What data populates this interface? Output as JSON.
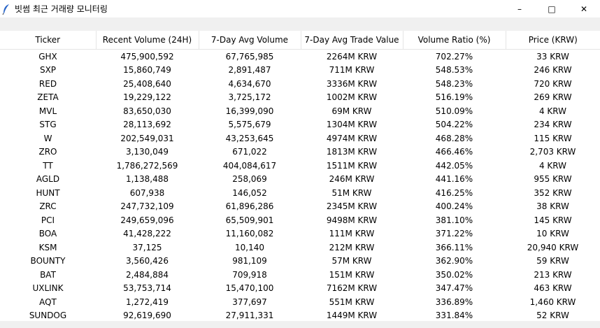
{
  "window": {
    "title": "빗썸 최근 거래량 모니터링",
    "minimize_glyph": "–",
    "maximize_glyph": "□",
    "close_glyph": "✕"
  },
  "table": {
    "columns": [
      "Ticker",
      "Recent Volume (24H)",
      "7-Day Avg Volume",
      "7-Day Avg Trade Value",
      "Volume Ratio (%)",
      "Price (KRW)"
    ],
    "rows": [
      [
        "GHX",
        "475,900,592",
        "67,765,985",
        "2264M KRW",
        "702.27%",
        "33 KRW"
      ],
      [
        "SXP",
        "15,860,749",
        "2,891,487",
        "711M KRW",
        "548.53%",
        "246 KRW"
      ],
      [
        "RED",
        "25,408,640",
        "4,634,670",
        "3336M KRW",
        "548.23%",
        "720 KRW"
      ],
      [
        "ZETA",
        "19,229,122",
        "3,725,172",
        "1002M KRW",
        "516.19%",
        "269 KRW"
      ],
      [
        "MVL",
        "83,650,030",
        "16,399,090",
        "69M KRW",
        "510.09%",
        "4 KRW"
      ],
      [
        "STG",
        "28,113,692",
        "5,575,679",
        "1304M KRW",
        "504.22%",
        "234 KRW"
      ],
      [
        "W",
        "202,549,031",
        "43,253,645",
        "4974M KRW",
        "468.28%",
        "115 KRW"
      ],
      [
        "ZRO",
        "3,130,049",
        "671,022",
        "1813M KRW",
        "466.46%",
        "2,703 KRW"
      ],
      [
        "TT",
        "1,786,272,569",
        "404,084,617",
        "1511M KRW",
        "442.05%",
        "4 KRW"
      ],
      [
        "AGLD",
        "1,138,488",
        "258,069",
        "246M KRW",
        "441.16%",
        "955 KRW"
      ],
      [
        "HUNT",
        "607,938",
        "146,052",
        "51M KRW",
        "416.25%",
        "352 KRW"
      ],
      [
        "ZRC",
        "247,732,109",
        "61,896,286",
        "2345M KRW",
        "400.24%",
        "38 KRW"
      ],
      [
        "PCI",
        "249,659,096",
        "65,509,901",
        "9498M KRW",
        "381.10%",
        "145 KRW"
      ],
      [
        "BOA",
        "41,428,222",
        "11,160,082",
        "111M KRW",
        "371.22%",
        "10 KRW"
      ],
      [
        "KSM",
        "37,125",
        "10,140",
        "212M KRW",
        "366.11%",
        "20,940 KRW"
      ],
      [
        "BOUNTY",
        "3,560,426",
        "981,109",
        "57M KRW",
        "362.90%",
        "59 KRW"
      ],
      [
        "BAT",
        "2,484,884",
        "709,918",
        "151M KRW",
        "350.02%",
        "213 KRW"
      ],
      [
        "UXLINK",
        "53,753,714",
        "15,470,100",
        "7162M KRW",
        "347.47%",
        "463 KRW"
      ],
      [
        "AQT",
        "1,272,419",
        "377,697",
        "551M KRW",
        "336.89%",
        "1,460 KRW"
      ],
      [
        "SUNDOG",
        "92,619,690",
        "27,911,331",
        "1449M KRW",
        "331.84%",
        "52 KRW"
      ]
    ]
  }
}
